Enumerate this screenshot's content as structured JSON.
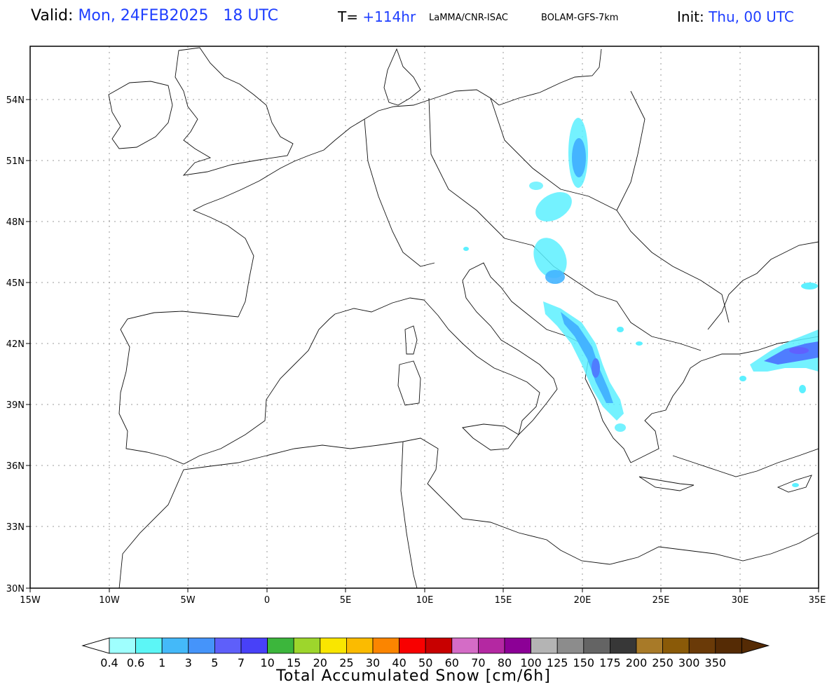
{
  "header": {
    "valid_label": "Valid:",
    "valid_value": "Mon, 24FEB2025   18 UTC",
    "t_label": "T=",
    "t_value": "+114hr",
    "source": "LaMMA/CNR-ISAC",
    "model": "BOLAM-GFS-7km",
    "init_label": "Init:",
    "init_value": "Thu, 00 UTC"
  },
  "map": {
    "lat_ticks": [
      "54N",
      "51N",
      "48N",
      "45N",
      "42N",
      "39N",
      "36N",
      "33N",
      "30N"
    ],
    "lon_ticks": [
      "15W",
      "10W",
      "5W",
      "0",
      "5E",
      "10E",
      "15E",
      "20E",
      "25E",
      "30E",
      "35E"
    ],
    "snow_colors": {
      "light": "#9ffcff",
      "cyan": "#5cf0ff",
      "sky": "#44b4ff",
      "blue": "#4f7dff",
      "violet": "#6060ff"
    }
  },
  "colorbar": {
    "title": "Total Accumulated Snow [cm/6h]",
    "labels": [
      "0.4",
      "0.6",
      "1",
      "3",
      "5",
      "7",
      "10",
      "15",
      "20",
      "25",
      "30",
      "40",
      "50",
      "60",
      "70",
      "80",
      "100",
      "125",
      "150",
      "175",
      "200",
      "250",
      "300",
      "350"
    ],
    "colors": [
      "#9ffffe",
      "#5cf6f6",
      "#44b9f9",
      "#4594fa",
      "#5e5ffa",
      "#4841f8",
      "#3cb63c",
      "#9dd62c",
      "#f9e600",
      "#fbbb00",
      "#fb8500",
      "#f80000",
      "#c80000",
      "#d46cc6",
      "#b428a2",
      "#8c0096",
      "#b4b4b4",
      "#8c8c8c",
      "#646464",
      "#373737",
      "#a87a28",
      "#8a5a08",
      "#6a3a08",
      "#552b05"
    ]
  }
}
